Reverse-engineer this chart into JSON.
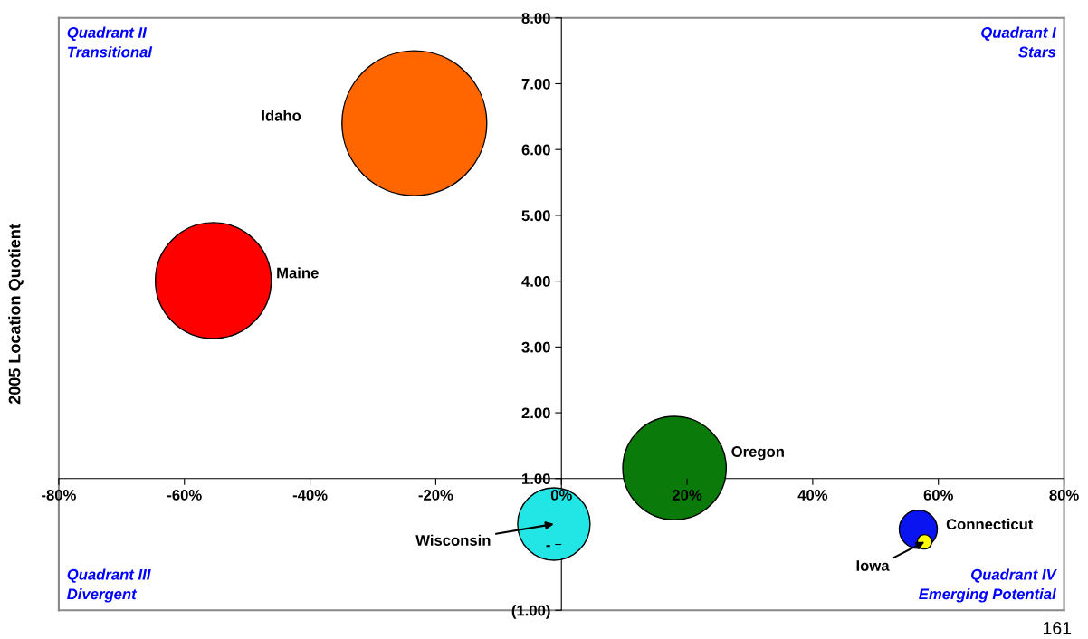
{
  "chart_data": {
    "type": "bubble",
    "ylabel": "2005 Location Quotient",
    "series": [
      {
        "name": "Idaho",
        "color": "#ff6600",
        "x": [
          -23.4
        ],
        "values": [
          6.4
        ],
        "sizes": [
          1
        ]
      },
      {
        "name": "Maine",
        "color": "#ff0000",
        "x": [
          -55.4
        ],
        "values": [
          4.01
        ],
        "sizes": [
          0.64
        ]
      },
      {
        "name": "Oregon",
        "color": "#0a7a0a",
        "x": [
          18.0
        ],
        "values": [
          1.16
        ],
        "sizes": [
          0.51
        ]
      },
      {
        "name": "Wisconsin",
        "color": "#22e6e6",
        "x": [
          -1.2
        ],
        "values": [
          0.31
        ],
        "sizes": [
          0.25
        ]
      },
      {
        "name": "Connecticut",
        "color": "#0a14f0",
        "x": [
          56.8
        ],
        "values": [
          0.23
        ],
        "sizes": [
          0.069
        ]
      },
      {
        "name": "Iowa",
        "color": "#ffff00",
        "x": [
          57.8
        ],
        "values": [
          0.04
        ],
        "sizes": [
          0.01
        ]
      }
    ],
    "xlim": [
      -80,
      80
    ],
    "ylim": [
      -1,
      8
    ],
    "xticks": [
      {
        "value": -80,
        "label": "-80%"
      },
      {
        "value": -60,
        "label": "-60%"
      },
      {
        "value": -40,
        "label": "-40%"
      },
      {
        "value": -20,
        "label": "-20%"
      },
      {
        "value": 0,
        "label": "0%"
      },
      {
        "value": 20,
        "label": "20%"
      },
      {
        "value": 40,
        "label": "40%"
      },
      {
        "value": 60,
        "label": "60%"
      },
      {
        "value": 80,
        "label": "80%"
      }
    ],
    "yticks": [
      {
        "value": -1,
        "label": "(1.00)"
      },
      {
        "value": 0,
        "label": "-"
      },
      {
        "value": 1,
        "label": "1.00"
      },
      {
        "value": 2,
        "label": "2.00"
      },
      {
        "value": 3,
        "label": "3.00"
      },
      {
        "value": 4,
        "label": "4.00"
      },
      {
        "value": 5,
        "label": "5.00"
      },
      {
        "value": 6,
        "label": "6.00"
      },
      {
        "value": 7,
        "label": "7.00"
      },
      {
        "value": 8,
        "label": "8.00"
      }
    ],
    "annotations": [
      "Quadrant II\nTransitional",
      "Quadrant I\nStars",
      "Quadrant III\nDivergent",
      "Quadrant IV\nEmerging Potential",
      "161"
    ],
    "grid": false,
    "legend": false
  }
}
